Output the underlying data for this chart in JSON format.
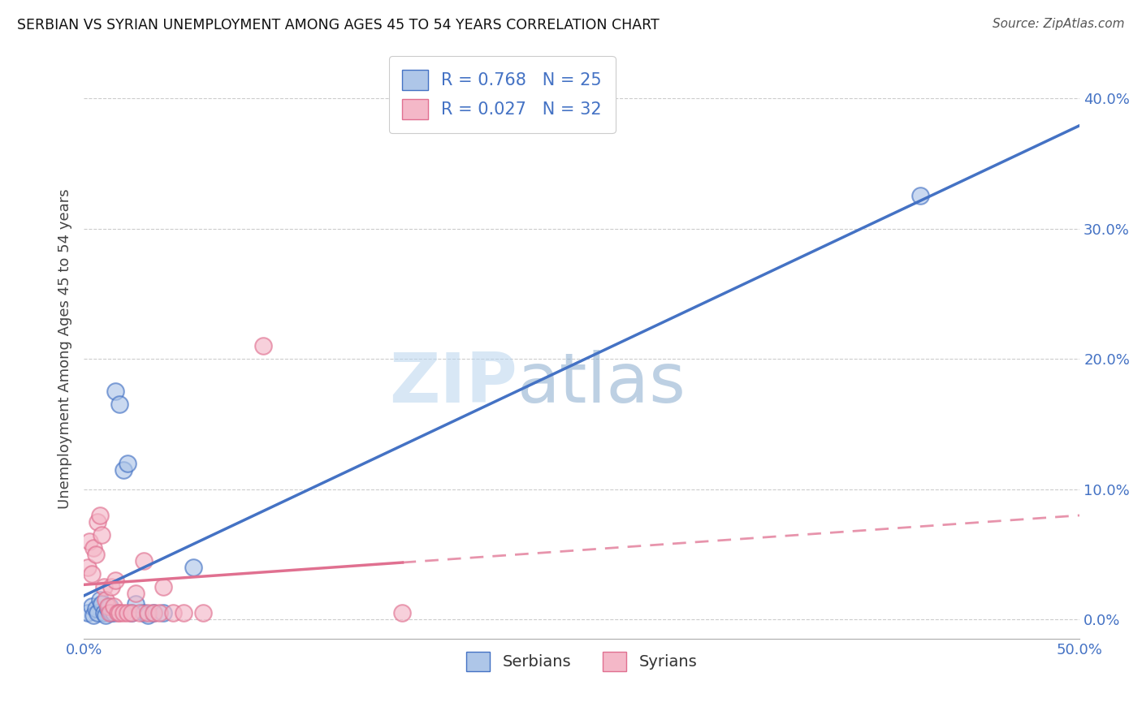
{
  "title": "SERBIAN VS SYRIAN UNEMPLOYMENT AMONG AGES 45 TO 54 YEARS CORRELATION CHART",
  "source": "Source: ZipAtlas.com",
  "ylabel": "Unemployment Among Ages 45 to 54 years",
  "xlim": [
    0.0,
    0.5
  ],
  "ylim": [
    -0.015,
    0.43
  ],
  "x_ticks": [
    0.0,
    0.1,
    0.2,
    0.3,
    0.4,
    0.5
  ],
  "x_tick_labels": [
    "0.0%",
    "",
    "",
    "",
    "",
    "50.0%"
  ],
  "y_ticks": [
    0.0,
    0.1,
    0.2,
    0.3,
    0.4
  ],
  "y_tick_labels": [
    "0.0%",
    "10.0%",
    "20.0%",
    "30.0%",
    "40.0%"
  ],
  "serbian_x": [
    0.002,
    0.004,
    0.005,
    0.006,
    0.007,
    0.008,
    0.009,
    0.01,
    0.011,
    0.012,
    0.013,
    0.014,
    0.015,
    0.016,
    0.018,
    0.02,
    0.022,
    0.024,
    0.026,
    0.03,
    0.032,
    0.035,
    0.04,
    0.055,
    0.42
  ],
  "serbian_y": [
    0.005,
    0.01,
    0.003,
    0.008,
    0.005,
    0.015,
    0.012,
    0.005,
    0.003,
    0.008,
    0.01,
    0.005,
    0.005,
    0.175,
    0.165,
    0.115,
    0.12,
    0.005,
    0.012,
    0.005,
    0.003,
    0.005,
    0.005,
    0.04,
    0.325
  ],
  "syrian_x": [
    0.002,
    0.003,
    0.004,
    0.005,
    0.006,
    0.007,
    0.008,
    0.009,
    0.01,
    0.011,
    0.012,
    0.013,
    0.014,
    0.015,
    0.016,
    0.017,
    0.018,
    0.02,
    0.022,
    0.024,
    0.026,
    0.028,
    0.03,
    0.032,
    0.035,
    0.038,
    0.04,
    0.045,
    0.05,
    0.06,
    0.09,
    0.16
  ],
  "syrian_y": [
    0.04,
    0.06,
    0.035,
    0.055,
    0.05,
    0.075,
    0.08,
    0.065,
    0.025,
    0.015,
    0.01,
    0.005,
    0.025,
    0.01,
    0.03,
    0.005,
    0.005,
    0.005,
    0.005,
    0.005,
    0.02,
    0.005,
    0.045,
    0.005,
    0.005,
    0.005,
    0.025,
    0.005,
    0.005,
    0.005,
    0.21,
    0.005
  ],
  "serbian_R": 0.768,
  "serbian_N": 25,
  "syrian_R": 0.027,
  "syrian_N": 32,
  "serbian_color": "#aec6e8",
  "syrian_color": "#f4b8c8",
  "serbian_line_color": "#4472c4",
  "syrian_line_color": "#e07090",
  "watermark_zip": "ZIP",
  "watermark_atlas": "atlas",
  "background_color": "#ffffff",
  "grid_color": "#cccccc"
}
